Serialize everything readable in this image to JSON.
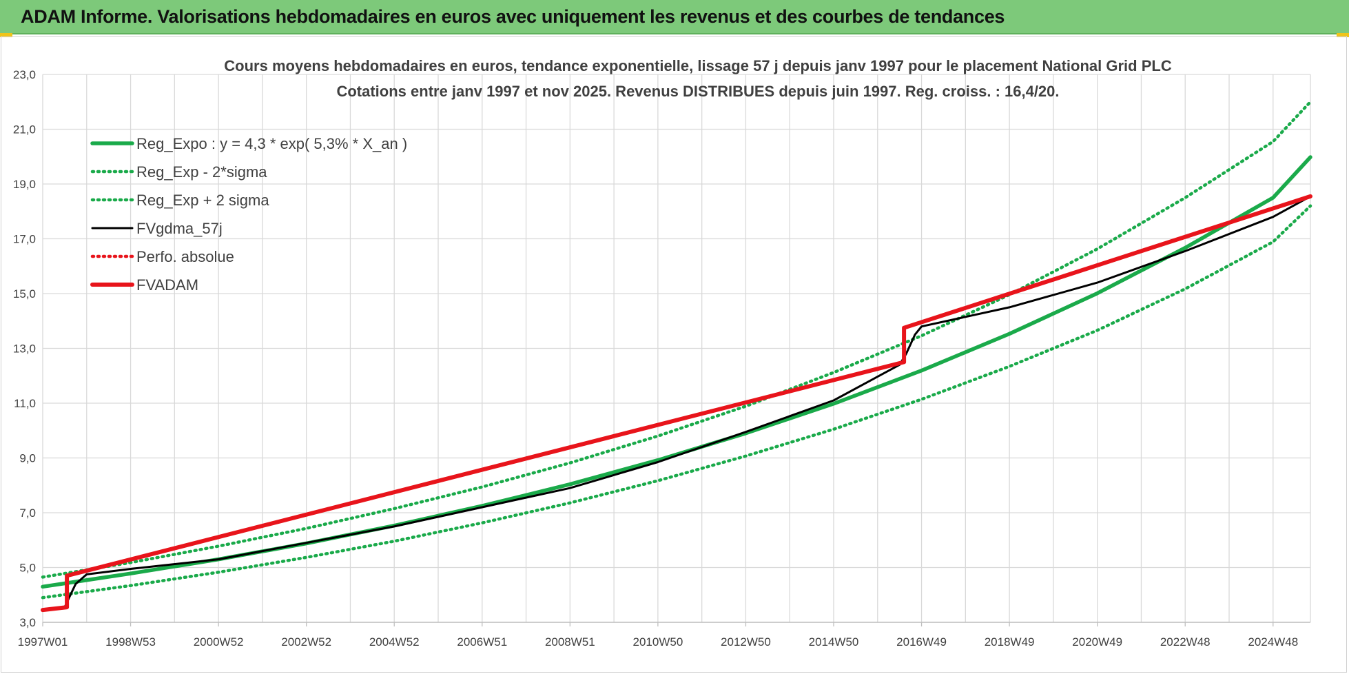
{
  "banner": {
    "title": "ADAM Informe. Valorisations hebdomadaires en euros avec uniquement les revenus et des courbes de tendances"
  },
  "colors": {
    "banner_bg": "#7dc97a",
    "trend_green": "#1aaa4a",
    "price_black": "#000000",
    "adam_red": "#e8141b",
    "grid": "#d9d9d9"
  },
  "chart_data": {
    "type": "line",
    "title": [
      "Cours moyens hebdomadaires en euros, tendance exponentielle, lissage 57 j depuis janv 1997 pour le placement National Grid PLC",
      "Cotations entre janv 1997 et nov 2025. Revenus DISTRIBUES depuis juin 1997. Reg. croiss. : 16,4/20."
    ],
    "xlabel": "",
    "ylabel": "",
    "ylim": [
      3,
      23
    ],
    "xlim": [
      1997.0,
      2025.85
    ],
    "y_ticks": [
      "3,0",
      "5,0",
      "7,0",
      "9,0",
      "11,0",
      "13,0",
      "15,0",
      "17,0",
      "19,0",
      "21,0",
      "23,0"
    ],
    "x_ticks": [
      {
        "label": "1997W01",
        "x": 1997.0
      },
      {
        "label": "1998W53",
        "x": 1999.0
      },
      {
        "label": "2000W52",
        "x": 2001.0
      },
      {
        "label": "2002W52",
        "x": 2003.0
      },
      {
        "label": "2004W52",
        "x": 2005.0
      },
      {
        "label": "2006W51",
        "x": 2007.0
      },
      {
        "label": "2008W51",
        "x": 2009.0
      },
      {
        "label": "2010W50",
        "x": 2011.0
      },
      {
        "label": "2012W50",
        "x": 2013.0
      },
      {
        "label": "2014W50",
        "x": 2015.0
      },
      {
        "label": "2016W49",
        "x": 2017.0
      },
      {
        "label": "2018W49",
        "x": 2019.0
      },
      {
        "label": "2020W49",
        "x": 2021.0
      },
      {
        "label": "2022W48",
        "x": 2023.0
      },
      {
        "label": "2024W48",
        "x": 2025.0
      }
    ],
    "grid": true,
    "legend_position": "top-left",
    "series": [
      {
        "name": "Reg_Expo : y = 4,3 * exp( 5,3% *  X_an )",
        "style": "solid",
        "color": "#1aaa4a",
        "x": [
          1997.0,
          1999.0,
          2001.0,
          2003.0,
          2005.0,
          2007.0,
          2009.0,
          2011.0,
          2013.0,
          2015.0,
          2017.0,
          2019.0,
          2021.0,
          2023.0,
          2025.0,
          2025.85
        ],
        "values": [
          4.3,
          4.78,
          5.3,
          5.88,
          6.53,
          7.25,
          8.04,
          8.92,
          9.9,
          10.98,
          12.19,
          13.53,
          15.01,
          16.67,
          18.5,
          19.98
        ]
      },
      {
        "name": "Reg_Exp - 2*sigma",
        "style": "dotted",
        "color": "#1aaa4a",
        "x": [
          1997.0,
          1999.0,
          2001.0,
          2003.0,
          2005.0,
          2007.0,
          2009.0,
          2011.0,
          2013.0,
          2015.0,
          2017.0,
          2019.0,
          2021.0,
          2023.0,
          2025.0,
          2025.85
        ],
        "values": [
          3.9,
          4.34,
          4.83,
          5.37,
          5.96,
          6.63,
          7.36,
          8.17,
          9.07,
          10.05,
          11.14,
          12.34,
          13.66,
          15.17,
          16.89,
          18.2
        ]
      },
      {
        "name": "Reg_Exp + 2 sigma",
        "style": "dotted",
        "color": "#1aaa4a",
        "x": [
          1997.0,
          1999.0,
          2001.0,
          2003.0,
          2005.0,
          2007.0,
          2009.0,
          2011.0,
          2013.0,
          2015.0,
          2017.0,
          2019.0,
          2021.0,
          2023.0,
          2025.0,
          2025.85
        ],
        "values": [
          4.65,
          5.18,
          5.78,
          6.43,
          7.15,
          7.94,
          8.82,
          9.8,
          10.89,
          12.12,
          13.46,
          14.96,
          16.63,
          18.5,
          20.55,
          22.0
        ]
      },
      {
        "name": "FVgdma_57j",
        "style": "solid",
        "color": "#000000",
        "x": [
          1997.0,
          1997.5,
          1997.6,
          1997.75,
          1998.0,
          1999.0,
          2001.0,
          2003.0,
          2005.0,
          2007.0,
          2009.0,
          2011.0,
          2013.0,
          2015.0,
          2016.5,
          2016.65,
          2016.85,
          2017.0,
          2019.0,
          2021.0,
          2023.0,
          2025.0,
          2025.85
        ],
        "values": [
          3.45,
          3.55,
          3.9,
          4.4,
          4.75,
          4.95,
          5.3,
          5.9,
          6.5,
          7.2,
          7.9,
          8.85,
          9.95,
          11.1,
          12.4,
          12.8,
          13.5,
          13.8,
          14.5,
          15.4,
          16.55,
          17.8,
          18.55
        ]
      },
      {
        "name": "Perfo. absolue",
        "style": "dotted",
        "color": "#e8141b",
        "x": [
          1997.0,
          1997.55,
          1997.55,
          2016.6,
          2016.6,
          2025.85
        ],
        "values": [
          3.45,
          3.55,
          4.7,
          12.5,
          13.75,
          18.55
        ]
      },
      {
        "name": "FVADAM",
        "style": "solid",
        "color": "#e8141b",
        "x": [
          1997.0,
          1997.55,
          1997.55,
          2016.6,
          2016.6,
          2025.85
        ],
        "values": [
          3.45,
          3.55,
          4.7,
          12.5,
          13.75,
          18.55
        ]
      }
    ]
  }
}
